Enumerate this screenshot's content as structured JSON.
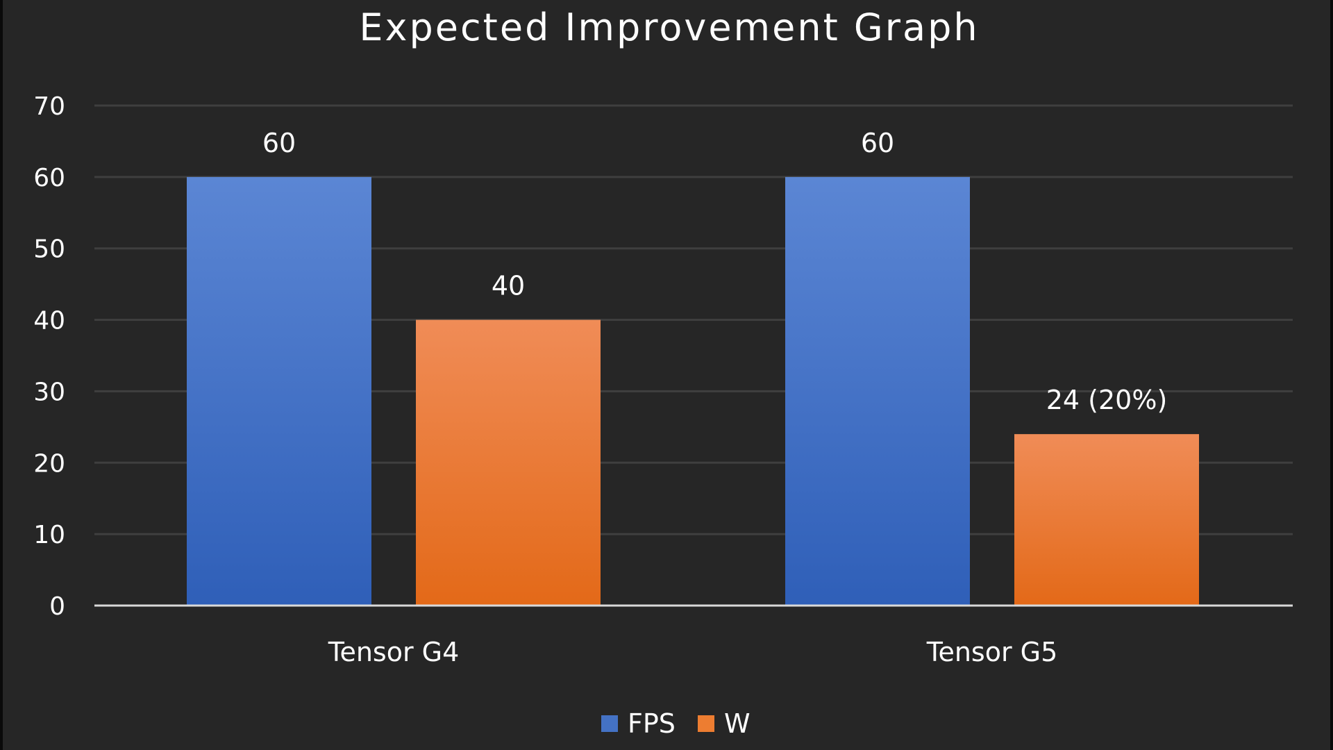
{
  "chart_data": {
    "type": "bar",
    "title": "Expected Improvement Graph",
    "categories": [
      "Tensor G4",
      "Tensor G5"
    ],
    "series": [
      {
        "name": "FPS",
        "values": [
          60,
          60
        ],
        "labels": [
          "60",
          "60"
        ],
        "color": "#4472c4"
      },
      {
        "name": "W",
        "values": [
          40,
          24
        ],
        "labels": [
          "40",
          "24 (20%)"
        ],
        "color": "#ed7d31"
      }
    ],
    "ylim": [
      0,
      70
    ],
    "yticks": [
      0,
      10,
      20,
      30,
      40,
      50,
      60,
      70
    ],
    "ytick_labels": [
      "0",
      "10",
      "20",
      "30",
      "40",
      "50",
      "60",
      "70"
    ],
    "grid": true,
    "legend_position": "bottom",
    "background": "#262626"
  }
}
